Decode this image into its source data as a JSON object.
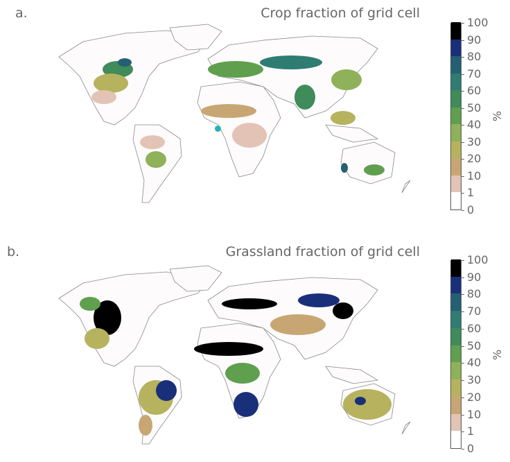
{
  "panels": [
    {
      "letter": "a.",
      "title": "Crop fraction of grid cell",
      "colorbar": {
        "ticks": [
          "0",
          "1",
          "10",
          "20",
          "30",
          "40",
          "50",
          "60",
          "70",
          "80",
          "90",
          "100"
        ],
        "unit": "%"
      },
      "marker_color": "#29b3b3"
    },
    {
      "letter": "b.",
      "title": "Grassland fraction of grid cell",
      "colorbar": {
        "ticks": [
          "0",
          "1",
          "10",
          "20",
          "30",
          "40",
          "50",
          "60",
          "70",
          "80",
          "90",
          "100"
        ],
        "unit": "%"
      }
    }
  ],
  "colorbar_colors": [
    "#ffffff",
    "#e3c3b5",
    "#c8a674",
    "#b6b25e",
    "#8fb15a",
    "#5f9f4e",
    "#3f8b5a",
    "#2f7c72",
    "#245f74",
    "#1a2f7a",
    "#000000"
  ],
  "outline_color": "#777777"
}
